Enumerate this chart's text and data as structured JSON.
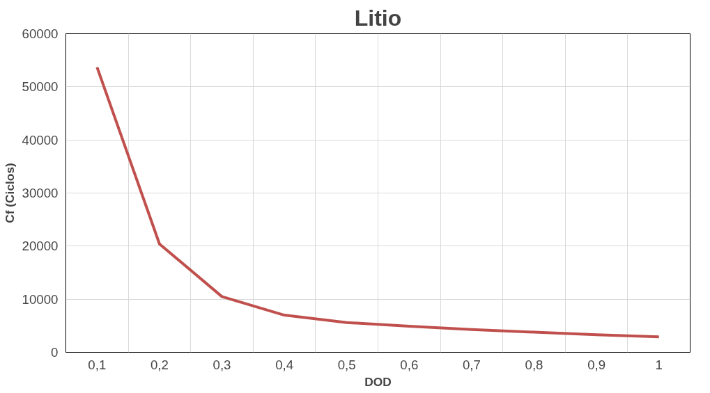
{
  "chart_data": {
    "type": "line",
    "title": "Litio",
    "xlabel": "DOD",
    "ylabel": "Cf (Ciclos)",
    "categories": [
      "0,1",
      "0,2",
      "0,3",
      "0,4",
      "0,5",
      "0,6",
      "0,7",
      "0,8",
      "0,9",
      "1"
    ],
    "series": [
      {
        "color": "#c0504d",
        "values": [
          53700,
          20400,
          10500,
          7000,
          5600,
          4900,
          4300,
          3800,
          3300,
          2900
        ]
      }
    ],
    "ylim": [
      0,
      60000
    ],
    "yticks": [
      0,
      10000,
      20000,
      30000,
      40000,
      50000,
      60000
    ],
    "grid": true,
    "marker": "none",
    "line_style": "solid"
  }
}
